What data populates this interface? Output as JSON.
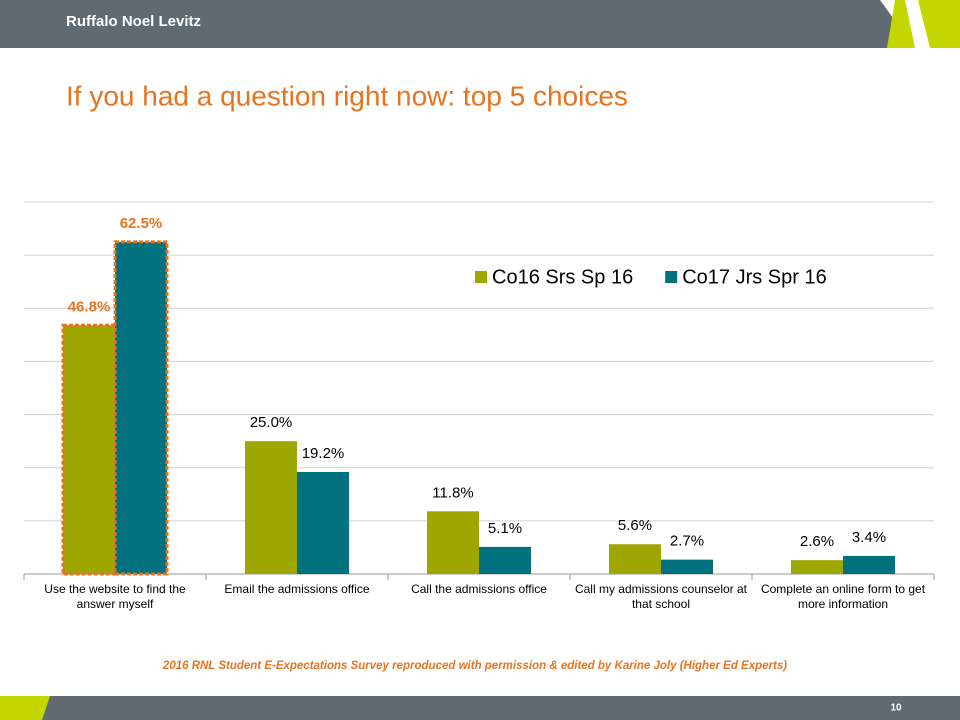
{
  "header": {
    "brand": "Ruffalo Noel Levitz"
  },
  "chart_data": {
    "type": "bar",
    "title": "If you had a question right now: top 5 choices",
    "categories": [
      "Use the website to find the answer myself",
      "Email the admissions office",
      "Call the admissions office",
      "Call my admissions counselor at that school",
      "Complete an online form to get more information"
    ],
    "series": [
      {
        "name": "Co16 Srs Sp 16",
        "color": "#9ea700",
        "values": [
          46.8,
          25.0,
          11.8,
          5.6,
          2.6
        ],
        "value_labels": [
          "46.8%",
          "25.0%",
          "11.8%",
          "5.6%",
          "2.6%"
        ]
      },
      {
        "name": "Co17 Jrs Spr 16",
        "color": "#00717f",
        "values": [
          62.5,
          19.2,
          5.1,
          2.7,
          3.4
        ],
        "value_labels": [
          "62.5%",
          "19.2%",
          "5.1%",
          "2.7%",
          "3.4%"
        ]
      }
    ],
    "ylim": [
      0,
      70
    ],
    "yticks": [
      0,
      10,
      20,
      30,
      40,
      50,
      60,
      70
    ],
    "grid": true,
    "legend": "top-right"
  },
  "footer": {
    "source": "2016 RNL Student E-Expectations Survey reproduced with permission & edited by Karine Joly (Higher Ed Experts)",
    "page": "10"
  }
}
